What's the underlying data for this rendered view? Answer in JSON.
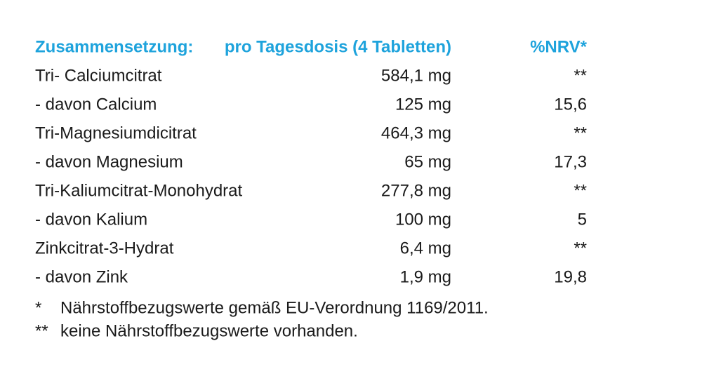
{
  "table": {
    "header": [
      "Zusammensetzung:",
      "pro Tagesdosis (4 Tabletten)",
      "%NRV*"
    ],
    "rows": [
      [
        "Tri- Calciumcitrat",
        "584,1 mg",
        "**"
      ],
      [
        "- davon Calcium",
        "125 mg",
        "15,6"
      ],
      [
        "Tri-Magnesiumdicitrat",
        "464,3 mg",
        "**"
      ],
      [
        "- davon Magnesium",
        "65 mg",
        "17,3"
      ],
      [
        "Tri-Kaliumcitrat-Monohydrat",
        "277,8 mg",
        "**"
      ],
      [
        "- davon Kalium",
        "100 mg",
        "5"
      ],
      [
        "Zinkcitrat-3-Hydrat",
        "6,4 mg",
        "**"
      ],
      [
        "- davon Zink",
        "1,9 mg",
        "19,8"
      ]
    ]
  },
  "footnotes": [
    {
      "marker": "*",
      "text": "Nährstoffbezugswerte gemäß EU-Verordnung 1169/2011."
    },
    {
      "marker": "**",
      "text": "keine Nährstoffbezugswerte vorhanden."
    }
  ]
}
